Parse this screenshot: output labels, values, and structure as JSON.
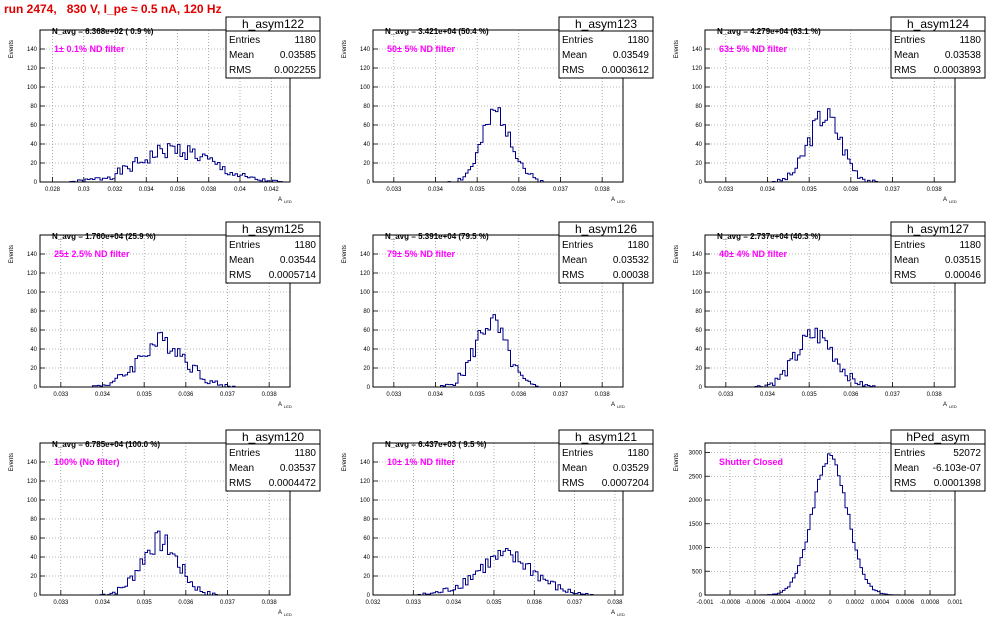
{
  "run_title": "run 2474,   830 V, I_pe ≈ 0.5 nA, 120 Hz",
  "colors": {
    "histogram": "#00008b",
    "filter_text": "#ff00ff",
    "title_red": "#e00000",
    "grid": "#777777"
  },
  "chart_data": [
    {
      "type": "bar",
      "title": "h_asym122",
      "stats": [
        [
          "Entries",
          "1180"
        ],
        [
          "Mean",
          "0.03585"
        ],
        [
          "RMS",
          "0.002255"
        ]
      ],
      "navg": "N_avg = 6.368e+02 ( 0.9 %)",
      "filter": "1± 0.1% ND filter",
      "ylabel": "Events",
      "xlabel": "A LED",
      "xlim": [
        0.0272,
        0.0432
      ],
      "ylim": [
        0,
        160
      ],
      "xticks": [
        0.028,
        0.03,
        0.032,
        0.034,
        0.036,
        0.038,
        0.04,
        0.042
      ],
      "xtick_labels": [
        "0.028",
        "0.03",
        "0.032",
        "0.034",
        "0.036",
        "0.038",
        "0.04",
        "0.042"
      ],
      "yticks": [
        0,
        20,
        40,
        60,
        80,
        100,
        120,
        140,
        160
      ],
      "ytick_labels": [
        "0",
        "20",
        "40",
        "60",
        "80",
        "100",
        "120",
        "140",
        ""
      ],
      "gauss": {
        "mean": 0.03585,
        "sigma": 0.00228,
        "peak": 34,
        "seed": 1
      }
    },
    {
      "type": "bar",
      "title": "h_asym123",
      "stats": [
        [
          "Entries",
          "1180"
        ],
        [
          "Mean",
          "0.03549"
        ],
        [
          "RMS",
          "0.0003612"
        ]
      ],
      "navg": "N_avg = 3.421e+04 (50.4 %)",
      "filter": "50± 5% ND filter",
      "ylabel": "Events",
      "xlabel": "A LED",
      "xlim": [
        0.0325,
        0.0385
      ],
      "ylim": [
        0,
        160
      ],
      "xticks": [
        0.033,
        0.034,
        0.035,
        0.036,
        0.037,
        0.038
      ],
      "xtick_labels": [
        "0.033",
        "0.034",
        "0.035",
        "0.036",
        "0.037",
        "0.038"
      ],
      "yticks": [
        0,
        20,
        40,
        60,
        80,
        100,
        120,
        140,
        160
      ],
      "ytick_labels": [
        "0",
        "20",
        "40",
        "60",
        "80",
        "100",
        "120",
        "140",
        ""
      ],
      "gauss": {
        "mean": 0.03549,
        "sigma": 0.00036,
        "peak": 72,
        "seed": 2
      }
    },
    {
      "type": "bar",
      "title": "h_asym124",
      "stats": [
        [
          "Entries",
          "1180"
        ],
        [
          "Mean",
          "0.03538"
        ],
        [
          "RMS",
          "0.0003893"
        ]
      ],
      "navg": "N_avg = 4.279e+04 (63.1 %)",
      "filter": "63± 5% ND filter",
      "ylabel": "Events",
      "xlabel": "A LED",
      "xlim": [
        0.0325,
        0.0385
      ],
      "ylim": [
        0,
        160
      ],
      "xticks": [
        0.033,
        0.034,
        0.035,
        0.036,
        0.037,
        0.038
      ],
      "xtick_labels": [
        "0.033",
        "0.034",
        "0.035",
        "0.036",
        "0.037",
        "0.038"
      ],
      "yticks": [
        0,
        20,
        40,
        60,
        80,
        100,
        120,
        140,
        160
      ],
      "ytick_labels": [
        "0",
        "20",
        "40",
        "60",
        "80",
        "100",
        "120",
        "140",
        ""
      ],
      "gauss": {
        "mean": 0.03538,
        "sigma": 0.00039,
        "peak": 70,
        "seed": 3
      }
    },
    {
      "type": "bar",
      "title": "h_asym125",
      "stats": [
        [
          "Entries",
          "1180"
        ],
        [
          "Mean",
          "0.03544"
        ],
        [
          "RMS",
          "0.0005714"
        ]
      ],
      "navg": "N_avg = 1.760e+04 (25.9 %)",
      "filter": "25± 2.5% ND filter",
      "ylabel": "Events",
      "xlabel": "A LED",
      "xlim": [
        0.0325,
        0.0385
      ],
      "ylim": [
        0,
        160
      ],
      "xticks": [
        0.033,
        0.034,
        0.035,
        0.036,
        0.037,
        0.038
      ],
      "xtick_labels": [
        "0.033",
        "0.034",
        "0.035",
        "0.036",
        "0.037",
        "0.038"
      ],
      "yticks": [
        0,
        20,
        40,
        60,
        80,
        100,
        120,
        140,
        160
      ],
      "ytick_labels": [
        "0",
        "20",
        "40",
        "60",
        "80",
        "100",
        "120",
        "140",
        ""
      ],
      "gauss": {
        "mean": 0.03544,
        "sigma": 0.00057,
        "peak": 48,
        "seed": 4
      }
    },
    {
      "type": "bar",
      "title": "h_asym126",
      "stats": [
        [
          "Entries",
          "1180"
        ],
        [
          "Mean",
          "0.03532"
        ],
        [
          "RMS",
          "0.00038"
        ]
      ],
      "navg": "N_avg = 5.391e+04 (79.5 %)",
      "filter": "79± 5% ND filter",
      "ylabel": "Events",
      "xlabel": "A LED",
      "xlim": [
        0.0325,
        0.0385
      ],
      "ylim": [
        0,
        160
      ],
      "xticks": [
        0.033,
        0.034,
        0.035,
        0.036,
        0.037,
        0.038
      ],
      "xtick_labels": [
        "0.033",
        "0.034",
        "0.035",
        "0.036",
        "0.037",
        "0.038"
      ],
      "yticks": [
        0,
        20,
        40,
        60,
        80,
        100,
        120,
        140,
        160
      ],
      "ytick_labels": [
        "0",
        "20",
        "40",
        "60",
        "80",
        "100",
        "120",
        "140",
        ""
      ],
      "gauss": {
        "mean": 0.03532,
        "sigma": 0.00038,
        "peak": 68,
        "seed": 5
      }
    },
    {
      "type": "bar",
      "title": "h_asym127",
      "stats": [
        [
          "Entries",
          "1180"
        ],
        [
          "Mean",
          "0.03515"
        ],
        [
          "RMS",
          "0.00046"
        ]
      ],
      "navg": "N_avg = 2.737e+04 (40.3 %)",
      "filter": "40± 4% ND filter",
      "ylabel": "Events",
      "xlabel": "A LED",
      "xlim": [
        0.0325,
        0.0385
      ],
      "ylim": [
        0,
        160
      ],
      "xticks": [
        0.033,
        0.034,
        0.035,
        0.036,
        0.037,
        0.038
      ],
      "xtick_labels": [
        "0.033",
        "0.034",
        "0.035",
        "0.036",
        "0.037",
        "0.038"
      ],
      "yticks": [
        0,
        20,
        40,
        60,
        80,
        100,
        120,
        140,
        160
      ],
      "ytick_labels": [
        "0",
        "20",
        "40",
        "60",
        "80",
        "100",
        "120",
        "140",
        ""
      ],
      "gauss": {
        "mean": 0.03515,
        "sigma": 0.00046,
        "peak": 55,
        "seed": 6
      }
    },
    {
      "type": "bar",
      "title": "h_asym120",
      "stats": [
        [
          "Entries",
          "1180"
        ],
        [
          "Mean",
          "0.03537"
        ],
        [
          "RMS",
          "0.0004472"
        ]
      ],
      "navg": "N_avg = 6.785e+04 (100.0 %)",
      "filter": "100% (No filter)",
      "ylabel": "Events",
      "xlabel": "A LED",
      "xlim": [
        0.0325,
        0.0385
      ],
      "ylim": [
        0,
        160
      ],
      "xticks": [
        0.033,
        0.034,
        0.035,
        0.036,
        0.037,
        0.038
      ],
      "xtick_labels": [
        "0.033",
        "0.034",
        "0.035",
        "0.036",
        "0.037",
        "0.038"
      ],
      "yticks": [
        0,
        20,
        40,
        60,
        80,
        100,
        120,
        140,
        160
      ],
      "ytick_labels": [
        "0",
        "20",
        "40",
        "60",
        "80",
        "100",
        "120",
        "140",
        ""
      ],
      "gauss": {
        "mean": 0.03537,
        "sigma": 0.00045,
        "peak": 56,
        "seed": 7
      }
    },
    {
      "type": "bar",
      "title": "h_asym121",
      "stats": [
        [
          "Entries",
          "1180"
        ],
        [
          "Mean",
          "0.03529"
        ],
        [
          "RMS",
          "0.0007204"
        ]
      ],
      "navg": "N_avg = 6.437e+03 ( 9.5 %)",
      "filter": "10± 1% ND filter",
      "ylabel": "Events",
      "xlabel": "A LED",
      "xlim": [
        0.032,
        0.0382
      ],
      "ylim": [
        0,
        160
      ],
      "xticks": [
        0.032,
        0.033,
        0.034,
        0.035,
        0.036,
        0.037,
        0.038
      ],
      "xtick_labels": [
        "0.032",
        "0.033",
        "0.034",
        "0.035",
        "0.036",
        "0.037",
        "0.038"
      ],
      "yticks": [
        0,
        20,
        40,
        60,
        80,
        100,
        120,
        140,
        160
      ],
      "ytick_labels": [
        "0",
        "20",
        "40",
        "60",
        "80",
        "100",
        "120",
        "140",
        ""
      ],
      "gauss": {
        "mean": 0.03529,
        "sigma": 0.00072,
        "peak": 40,
        "seed": 8
      }
    },
    {
      "type": "bar",
      "title": "hPed_asym",
      "stats": [
        [
          "Entries",
          "52072"
        ],
        [
          "Mean",
          "-6.103e-07"
        ],
        [
          "RMS",
          "0.0001398"
        ]
      ],
      "navg": "",
      "filter": "Shutter Closed",
      "ylabel": "Events",
      "xlabel": "",
      "xlim": [
        -0.001,
        0.001
      ],
      "ylim": [
        0,
        3200
      ],
      "xticks": [
        -0.001,
        -0.0008,
        -0.0006,
        -0.0004,
        -0.0002,
        0,
        0.0002,
        0.0004,
        0.0006,
        0.0008,
        0.001
      ],
      "xtick_labels": [
        "-0.001",
        "-0.0008",
        "-0.0006",
        "-0.0004",
        "-0.0002",
        "0",
        "0.0002",
        "0.0004",
        "0.0006",
        "0.0008",
        "0.001"
      ],
      "yticks": [
        0,
        500,
        1000,
        1500,
        2000,
        2500,
        3000
      ],
      "ytick_labels": [
        "0",
        "500",
        "1000",
        "1500",
        "2000",
        "2500",
        "3000"
      ],
      "gauss": {
        "mean": 0,
        "sigma": 0.00014,
        "peak": 2900,
        "seed": 9
      }
    }
  ]
}
